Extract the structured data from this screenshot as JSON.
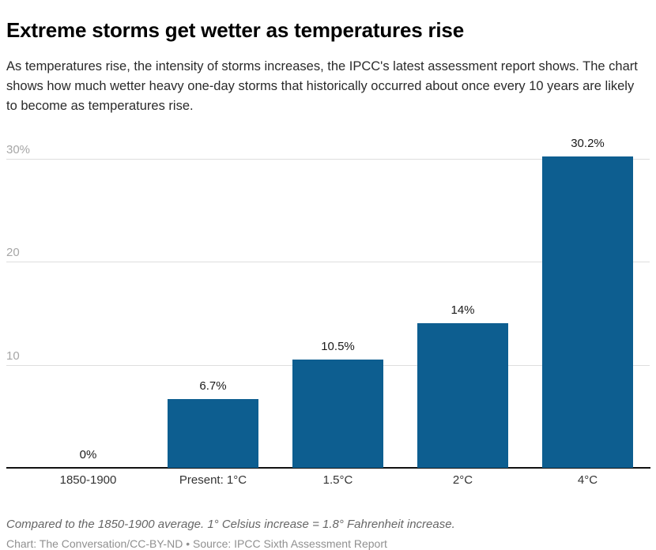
{
  "header": {
    "title": "Extreme storms get wetter as temperatures rise",
    "subtitle": "As temperatures rise, the intensity of storms increases, the IPCC's latest assessment report shows. The chart shows how much wetter heavy one-day storms that historically occurred about once every 10 years are likely to become as temperatures rise."
  },
  "chart_data": {
    "type": "bar",
    "title": "Extreme storms get wetter as temperatures rise",
    "xlabel": "",
    "ylabel": "",
    "categories": [
      "1850-1900",
      "Present: 1°C",
      "1.5°C",
      "2°C",
      "4°C"
    ],
    "values": [
      0,
      6.7,
      10.5,
      14,
      30.2
    ],
    "value_labels": [
      "0%",
      "6.7%",
      "10.5%",
      "14%",
      "30.2%"
    ],
    "y_gridlines": [
      {
        "value": 30,
        "label": "30%"
      },
      {
        "value": 20,
        "label": "20"
      },
      {
        "value": 10,
        "label": "10"
      }
    ],
    "ylim": [
      0,
      31
    ],
    "grid_on": true,
    "legend": "none",
    "colors": {
      "bar": "#0d5e90",
      "gridline": "#dedede",
      "axis_label": "#a6a6a6",
      "value_label": "#1a1a1a",
      "category_label": "#333333",
      "baseline": "#111111"
    }
  },
  "footer": {
    "note": "Compared to the 1850-1900 average. 1° Celsius increase = 1.8° Fahrenheit increase.",
    "credit": "Chart: The Conversation/CC-BY-ND • Source: IPCC Sixth Assessment Report"
  }
}
